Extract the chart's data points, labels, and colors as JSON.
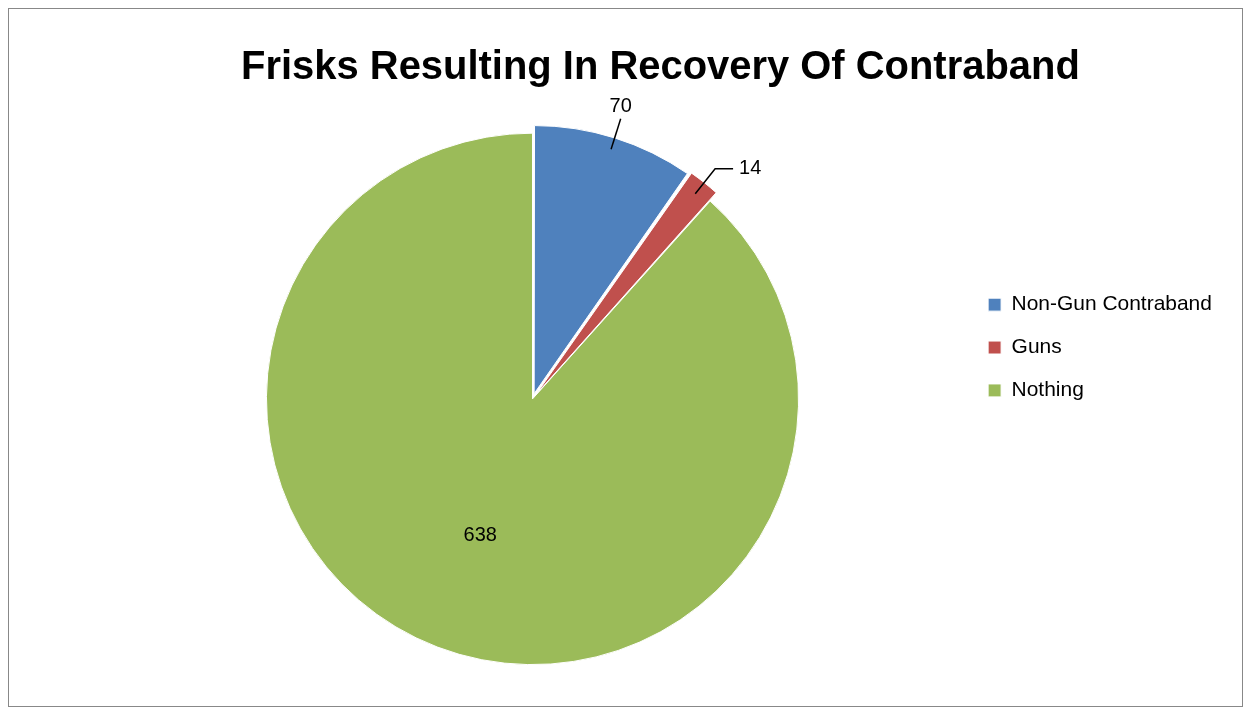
{
  "chart_data": {
    "type": "pie",
    "title": "Frisks Resulting In Recovery Of Contraband",
    "categories": [
      "Non-Gun Contraband",
      "Guns",
      "Nothing"
    ],
    "values": [
      70,
      14,
      638
    ],
    "colors": [
      "#4f81bd",
      "#c0504d",
      "#9bbb59"
    ],
    "data_labels": true,
    "legend": "right"
  }
}
